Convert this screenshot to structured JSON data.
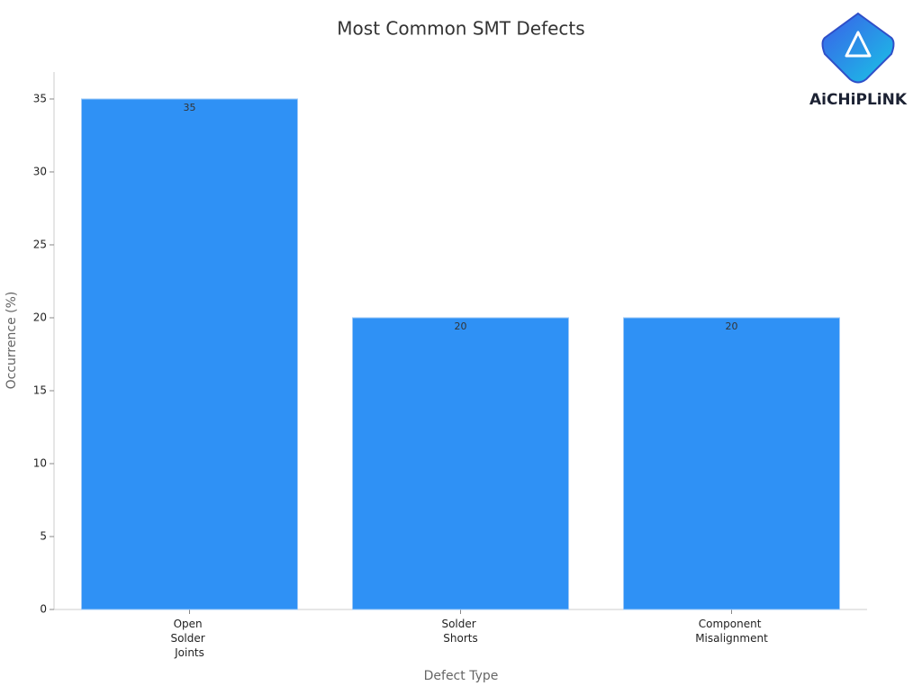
{
  "chart_data": {
    "type": "bar",
    "title": "Most Common SMT Defects",
    "categories": [
      "Open Solder Joints",
      "Solder Shorts",
      "Component Misalignment"
    ],
    "values": [
      35,
      20,
      20
    ],
    "color": "#2f91f5",
    "x_label": "Defect Type",
    "y_label": "Occurrence (%)",
    "ylim": [
      0,
      36.85
    ],
    "yticks": [
      0,
      5,
      10,
      15,
      20,
      25,
      30,
      35
    ],
    "grid": false,
    "value_labels_shown": true
  },
  "logo": {
    "text": "AiCHiPLiNK"
  }
}
